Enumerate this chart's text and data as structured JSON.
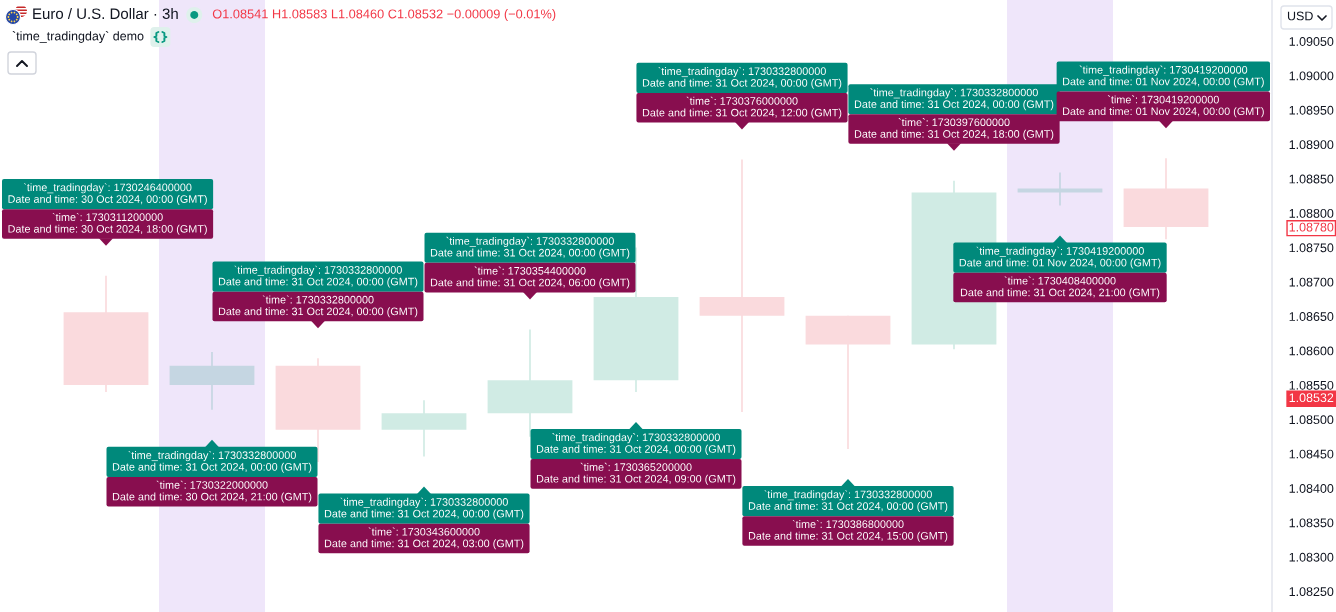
{
  "chart_data": {
    "type": "candlestick",
    "title": "Euro / U.S. Dollar · 3h",
    "subtitle": "`time_tradingday` demo",
    "ylabel": "USD",
    "categories": [
      null,
      null,
      null,
      null,
      null,
      null,
      null,
      null,
      null,
      null,
      null
    ],
    "ohlc": [
      [
        1.08656,
        1.08709,
        1.0854,
        1.0855
      ],
      [
        1.0855,
        1.08598,
        1.08514,
        1.08578
      ],
      [
        1.08578,
        1.08589,
        1.08438,
        1.08485
      ],
      [
        1.08485,
        1.08528,
        1.08446,
        1.08509
      ],
      [
        1.08509,
        1.08631,
        1.08475,
        1.08557
      ],
      [
        1.08557,
        1.0875,
        1.0854,
        1.08678
      ],
      [
        1.08678,
        1.08878,
        1.08511,
        1.08651
      ],
      [
        1.08651,
        1.08651,
        1.08457,
        1.08609
      ],
      [
        1.08609,
        1.08847,
        1.08602,
        1.0883
      ],
      [
        1.0883,
        1.08859,
        1.08811,
        1.08836
      ],
      [
        1.08836,
        1.0888,
        1.08762,
        1.0878
      ]
    ],
    "colors": [
      "#fadadd",
      "#c5d6e2",
      "#fadadd",
      "#d0ebe4",
      "#d0ebe4",
      "#d0ebe4",
      "#fadadd",
      "#fadadd",
      "#d0ebe4",
      "#c5d6e2",
      "#fadadd"
    ],
    "ylim": [
      1.0822,
      1.0911
    ],
    "yticks": [
      {
        "value": 1.0825,
        "label": "1.08250"
      },
      {
        "value": 1.083,
        "label": "1.08300"
      },
      {
        "value": 1.0835,
        "label": "1.08350"
      },
      {
        "value": 1.084,
        "label": "1.08400"
      },
      {
        "value": 1.0845,
        "label": "1.08450"
      },
      {
        "value": 1.085,
        "label": "1.08500"
      },
      {
        "value": 1.08532,
        "label": "1.08532"
      },
      {
        "value": 1.0855,
        "label": "1.08550"
      },
      {
        "value": 1.086,
        "label": "1.08600"
      },
      {
        "value": 1.0865,
        "label": "1.08650"
      },
      {
        "value": 1.087,
        "label": "1.08700"
      },
      {
        "value": 1.0875,
        "label": "1.08750"
      },
      {
        "value": 1.0878,
        "label": "1.08780"
      },
      {
        "value": 1.088,
        "label": "1.08800"
      },
      {
        "value": 1.0885,
        "label": "1.08850"
      },
      {
        "value": 1.089,
        "label": "1.08900"
      },
      {
        "value": 1.0895,
        "label": "1.08950"
      },
      {
        "value": 1.09,
        "label": "1.09000"
      },
      {
        "value": 1.0905,
        "label": "1.09050"
      }
    ],
    "tick_labels": "y",
    "annotations": [
      "O1.08541 H1.08583 L1.08460 C1.08532 −0.00009 (−0.01%)",
      "`time_tradingday`: 1730246400000\nDate and time: 30 Oct 2024, 00:00 (GMT)\n`time`: 1730311200000\nDate and time: 30 Oct 2024, 18:00 (GMT)",
      "`time_tradingday`: 1730332800000\nDate and time: 31 Oct 2024, 00:00 (GMT)\n`time`: 1730322000000\nDate and time: 30 Oct 2024, 21:00 (GMT)",
      "`time_tradingday`: 1730332800000\nDate and time: 31 Oct 2024, 00:00 (GMT)\n`time`: 1730332800000\nDate and time: 31 Oct 2024, 00:00 (GMT)",
      "`time_tradingday`: 1730332800000\nDate and time: 31 Oct 2024, 00:00 (GMT)\n`time`: 1730343600000\nDate and time: 31 Oct 2024, 03:00 (GMT)",
      "`time_tradingday`: 1730332800000\nDate and time: 31 Oct 2024, 00:00 (GMT)\n`time`: 1730354400000\nDate and time: 31 Oct 2024, 06:00 (GMT)",
      "`time_tradingday`: 1730332800000\nDate and time: 31 Oct 2024, 00:00 (GMT)\n`time`: 1730365200000\nDate and time: 31 Oct 2024, 09:00 (GMT)",
      "`time_tradingday`: 1730332800000\nDate and time: 31 Oct 2024, 00:00 (GMT)\n`time`: 1730376000000\nDate and time: 31 Oct 2024, 12:00 (GMT)",
      "`time_tradingday`: 1730332800000\nDate and time: 31 Oct 2024, 00:00 (GMT)\n`time`: 1730386800000\nDate and time: 31 Oct 2024, 15:00 (GMT)",
      "`time_tradingday`: 1730332800000\nDate and time: 31 Oct 2024, 00:00 (GMT)\n`time`: 1730397600000\nDate and time: 31 Oct 2024, 18:00 (GMT)",
      "`time_tradingday`: 1730419200000\nDate and time: 01 Nov 2024, 00:00 (GMT)\n`time`: 1730408400000\nDate and time: 31 Oct 2024, 21:00 (GMT)",
      "`time_tradingday`: 1730419200000\nDate and time: 01 Nov 2024, 00:00 (GMT)\n`time`: 1730419200000\nDate and time: 01 Nov 2024, 00:00 (GMT)"
    ]
  }
}
